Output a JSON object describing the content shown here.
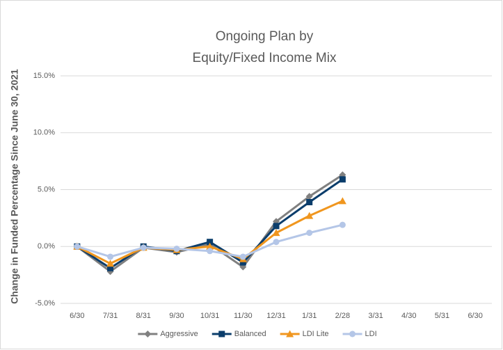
{
  "chart_data": {
    "type": "line",
    "title": [
      "Ongoing Plan by",
      "Equity/Fixed Income Mix"
    ],
    "y_label": "Change in Funded Percentage Since June 30, 2021",
    "categories": [
      "6/30",
      "7/31",
      "8/31",
      "9/30",
      "10/31",
      "11/30",
      "12/31",
      "1/31",
      "2/28",
      "3/31",
      "4/30",
      "5/31",
      "6/30"
    ],
    "series": [
      {
        "name": "Aggressive",
        "color": "#808080",
        "marker": "diamond",
        "values": [
          0,
          -2.2,
          -0.1,
          -0.5,
          0.2,
          -1.8,
          2.2,
          4.4,
          6.3,
          null,
          null,
          null,
          null
        ]
      },
      {
        "name": "Balanced",
        "color": "#0b3d6b",
        "marker": "square",
        "values": [
          0,
          -1.9,
          0.0,
          -0.4,
          0.4,
          -1.4,
          1.8,
          3.9,
          5.9,
          null,
          null,
          null,
          null
        ]
      },
      {
        "name": "LDI Lite",
        "color": "#f0961e",
        "marker": "triangle",
        "values": [
          0,
          -1.5,
          -0.1,
          -0.3,
          0.0,
          -1.1,
          1.2,
          2.7,
          4.0,
          null,
          null,
          null,
          null
        ]
      },
      {
        "name": "LDI",
        "color": "#b4c6e7",
        "marker": "circle",
        "values": [
          0,
          -0.9,
          -0.1,
          -0.2,
          -0.4,
          -0.9,
          0.4,
          1.2,
          1.9,
          null,
          null,
          null,
          null
        ]
      }
    ],
    "ylim": [
      -5,
      15
    ],
    "yticks": [
      {
        "value": -5,
        "label": "-5.0%"
      },
      {
        "value": 0,
        "label": "0.0%"
      },
      {
        "value": 5,
        "label": "5.0%"
      },
      {
        "value": 10,
        "label": "10.0%"
      },
      {
        "value": 15,
        "label": "15.0%"
      }
    ],
    "grid": true,
    "legend": "bottom"
  }
}
